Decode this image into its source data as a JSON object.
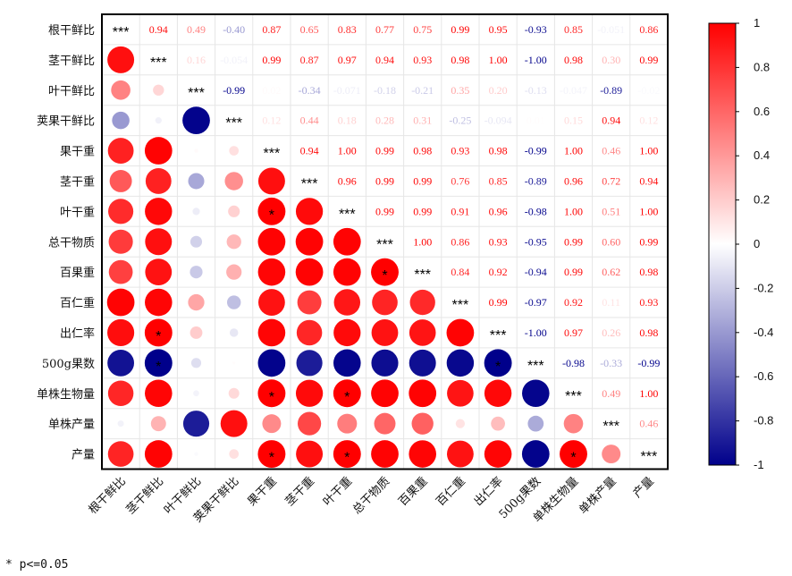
{
  "chart_data": {
    "type": "heatmap",
    "variables": [
      "根干鲜比",
      "茎干鲜比",
      "叶干鲜比",
      "荚果干鲜比",
      "果干重",
      "茎干重",
      "叶干重",
      "总干物质",
      "百果重",
      "百仁重",
      "出仁率",
      "500g果数",
      "单株生物量",
      "单株产量",
      "产量"
    ],
    "matrix": [
      [
        1,
        0.94,
        0.49,
        -0.4,
        0.87,
        0.65,
        0.83,
        0.77,
        0.75,
        0.99,
        0.95,
        -0.93,
        0.85,
        -0.051,
        0.86
      ],
      [
        0.94,
        1,
        0.16,
        -0.054,
        0.99,
        0.87,
        0.97,
        0.94,
        0.93,
        0.98,
        1.0,
        -1.0,
        0.98,
        0.3,
        0.99
      ],
      [
        0.49,
        0.16,
        1,
        -0.99,
        0.02,
        -0.34,
        -0.071,
        -0.18,
        -0.21,
        0.35,
        0.2,
        -0.13,
        -0.047,
        -0.89,
        -0.02
      ],
      [
        -0.4,
        -0.054,
        -0.99,
        1,
        0.12,
        0.44,
        0.18,
        0.28,
        0.31,
        -0.25,
        -0.094,
        0.01,
        0.15,
        0.94,
        0.12
      ],
      [
        0.87,
        0.99,
        0.02,
        0.12,
        1,
        0.94,
        1.0,
        0.99,
        0.98,
        0.93,
        0.98,
        -0.99,
        1.0,
        0.46,
        1.0
      ],
      [
        0.65,
        0.87,
        -0.34,
        0.44,
        0.94,
        1,
        0.96,
        0.99,
        0.99,
        0.76,
        0.85,
        -0.89,
        0.96,
        0.72,
        0.94
      ],
      [
        0.83,
        0.97,
        -0.071,
        0.18,
        1.0,
        0.96,
        1,
        0.99,
        0.99,
        0.91,
        0.96,
        -0.98,
        1.0,
        0.51,
        1.0
      ],
      [
        0.77,
        0.94,
        -0.18,
        0.28,
        0.99,
        0.99,
        0.99,
        1,
        1.0,
        0.86,
        0.93,
        -0.95,
        0.99,
        0.6,
        0.99
      ],
      [
        0.75,
        0.93,
        -0.21,
        0.31,
        0.98,
        0.99,
        0.99,
        1.0,
        1,
        0.84,
        0.92,
        -0.94,
        0.99,
        0.62,
        0.98
      ],
      [
        0.99,
        0.98,
        0.35,
        -0.25,
        0.93,
        0.76,
        0.91,
        0.86,
        0.84,
        1,
        0.99,
        -0.97,
        0.92,
        0.11,
        0.93
      ],
      [
        0.95,
        1.0,
        0.2,
        -0.094,
        0.98,
        0.85,
        0.96,
        0.93,
        0.92,
        0.99,
        1,
        -1.0,
        0.97,
        0.26,
        0.98
      ],
      [
        -0.93,
        -1.0,
        -0.13,
        0.01,
        -0.99,
        -0.89,
        -0.98,
        -0.95,
        -0.94,
        -0.97,
        -1.0,
        1,
        -0.98,
        -0.33,
        -0.99
      ],
      [
        0.85,
        0.98,
        -0.047,
        0.15,
        1.0,
        0.96,
        1.0,
        0.99,
        0.99,
        0.92,
        0.97,
        -0.98,
        1,
        0.49,
        1.0
      ],
      [
        -0.051,
        0.3,
        -0.89,
        0.94,
        0.46,
        0.72,
        0.51,
        0.6,
        0.62,
        0.11,
        0.26,
        -0.33,
        0.49,
        1,
        0.46
      ],
      [
        0.86,
        0.99,
        -0.02,
        0.12,
        1.0,
        0.94,
        1.0,
        0.99,
        0.98,
        0.93,
        0.98,
        -0.99,
        1.0,
        0.46,
        1
      ]
    ],
    "upper_labels": [
      [
        "",
        "0.94",
        "0.49",
        "-0.40",
        "0.87",
        "0.65",
        "0.83",
        "0.77",
        "0.75",
        "0.99",
        "0.95",
        "-0.93",
        "0.85",
        "-0.051",
        "0.86"
      ],
      [
        "",
        "",
        "0.16",
        "-0.054",
        "0.99",
        "0.87",
        "0.97",
        "0.94",
        "0.93",
        "0.98",
        "1.00",
        "-1.00",
        "0.98",
        "0.30",
        "0.99"
      ],
      [
        "",
        "",
        "",
        "-0.99",
        "0.02",
        "-0.34",
        "-0.071",
        "-0.18",
        "-0.21",
        "0.35",
        "0.20",
        "-0.13",
        "-0.047",
        "-0.89",
        "-0.02"
      ],
      [
        "",
        "",
        "",
        "",
        "0.12",
        "0.44",
        "0.18",
        "0.28",
        "0.31",
        "-0.25",
        "-0.094",
        "0.01",
        "0.15",
        "0.94",
        "0.12"
      ],
      [
        "",
        "",
        "",
        "",
        "",
        "0.94",
        "1.00",
        "0.99",
        "0.98",
        "0.93",
        "0.98",
        "-0.99",
        "1.00",
        "0.46",
        "1.00"
      ],
      [
        "",
        "",
        "",
        "",
        "",
        "",
        "0.96",
        "0.99",
        "0.99",
        "0.76",
        "0.85",
        "-0.89",
        "0.96",
        "0.72",
        "0.94"
      ],
      [
        "",
        "",
        "",
        "",
        "",
        "",
        "",
        "0.99",
        "0.99",
        "0.91",
        "0.96",
        "-0.98",
        "1.00",
        "0.51",
        "1.00"
      ],
      [
        "",
        "",
        "",
        "",
        "",
        "",
        "",
        "",
        "1.00",
        "0.86",
        "0.93",
        "-0.95",
        "0.99",
        "0.60",
        "0.99"
      ],
      [
        "",
        "",
        "",
        "",
        "",
        "",
        "",
        "",
        "",
        "0.84",
        "0.92",
        "-0.94",
        "0.99",
        "0.62",
        "0.98"
      ],
      [
        "",
        "",
        "",
        "",
        "",
        "",
        "",
        "",
        "",
        "",
        "0.99",
        "-0.97",
        "0.92",
        "0.11",
        "0.93"
      ],
      [
        "",
        "",
        "",
        "",
        "",
        "",
        "",
        "",
        "",
        "",
        "",
        "-1.00",
        "0.97",
        "0.26",
        "0.98"
      ],
      [
        "",
        "",
        "",
        "",
        "",
        "",
        "",
        "",
        "",
        "",
        "",
        "",
        "-0.98",
        "-0.33",
        "-0.99"
      ],
      [
        "",
        "",
        "",
        "",
        "",
        "",
        "",
        "",
        "",
        "",
        "",
        "",
        "",
        "0.49",
        "1.00"
      ],
      [
        "",
        "",
        "",
        "",
        "",
        "",
        "",
        "",
        "",
        "",
        "",
        "",
        "",
        "",
        "0.46"
      ],
      [
        "",
        "",
        "",
        "",
        "",
        "",
        "",
        "",
        "",
        "",
        "",
        "",
        "",
        "",
        ""
      ]
    ],
    "diagonal_label": "***",
    "significant_lower": [
      [
        6,
        4
      ],
      [
        8,
        7
      ],
      [
        10,
        1
      ],
      [
        11,
        1
      ],
      [
        11,
        10
      ],
      [
        12,
        4
      ],
      [
        12,
        6
      ],
      [
        14,
        4
      ],
      [
        14,
        6
      ],
      [
        14,
        12
      ]
    ],
    "significance_mark": "*",
    "colorbar": {
      "range": [
        -1,
        1
      ],
      "ticks": [
        "-1",
        "-0.8",
        "-0.6",
        "-0.4",
        "-0.2",
        "0",
        "0.2",
        "0.4",
        "0.6",
        "0.8",
        "1"
      ],
      "colors": {
        "negative": "#00008b",
        "zero": "#ffffff",
        "positive": "#ff0000"
      }
    },
    "footnote": "* p<=0.05"
  }
}
